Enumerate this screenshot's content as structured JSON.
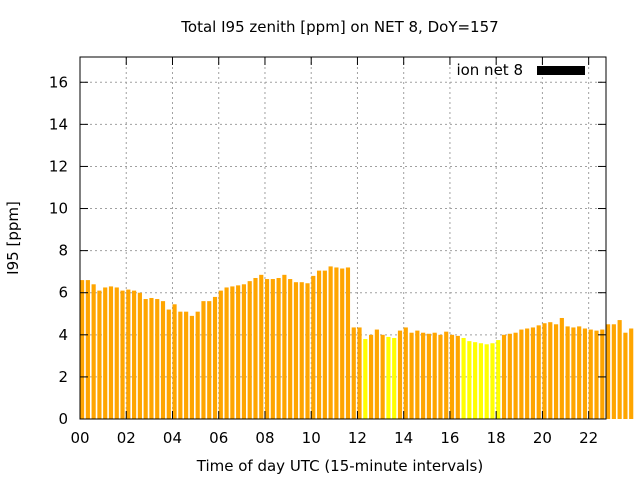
{
  "chart_data": {
    "type": "bar",
    "title": "Total I95 zenith [ppm] on NET 8, DoY=157",
    "xlabel": "Time of day UTC (15-minute intervals)",
    "ylabel": "I95 [ppm]",
    "xlim": [
      0,
      22.75
    ],
    "ylim": [
      0,
      17.2
    ],
    "grid": true,
    "legend_position": "top-right",
    "x_ticks": [
      {
        "value": 0,
        "label": "00"
      },
      {
        "value": 2,
        "label": "02"
      },
      {
        "value": 4,
        "label": "04"
      },
      {
        "value": 6,
        "label": "06"
      },
      {
        "value": 8,
        "label": "08"
      },
      {
        "value": 10,
        "label": "10"
      },
      {
        "value": 12,
        "label": "12"
      },
      {
        "value": 14,
        "label": "14"
      },
      {
        "value": 16,
        "label": "16"
      },
      {
        "value": 18,
        "label": "18"
      },
      {
        "value": 20,
        "label": "20"
      },
      {
        "value": 22,
        "label": "22"
      }
    ],
    "y_ticks": [
      {
        "value": 0,
        "label": "0"
      },
      {
        "value": 2,
        "label": "2"
      },
      {
        "value": 4,
        "label": "4"
      },
      {
        "value": 6,
        "label": "6"
      },
      {
        "value": 8,
        "label": "8"
      },
      {
        "value": 10,
        "label": "10"
      },
      {
        "value": 12,
        "label": "12"
      },
      {
        "value": 14,
        "label": "14"
      },
      {
        "value": 16,
        "label": "16"
      }
    ],
    "series": [
      {
        "name": "ion net 8",
        "legend_color": "#000000",
        "interval_hours": 0.25,
        "bar_colors": {
          "orange": "#ffa500",
          "yellow": "#ffff00"
        },
        "values": [
          6.6,
          6.6,
          6.4,
          6.1,
          6.25,
          6.3,
          6.25,
          6.1,
          6.15,
          6.1,
          6.0,
          5.7,
          5.75,
          5.7,
          5.6,
          5.2,
          5.45,
          5.1,
          5.1,
          4.9,
          5.1,
          5.6,
          5.6,
          5.8,
          6.1,
          6.25,
          6.3,
          6.35,
          6.4,
          6.55,
          6.7,
          6.85,
          6.65,
          6.65,
          6.7,
          6.85,
          6.65,
          6.5,
          6.5,
          6.45,
          6.8,
          7.05,
          7.05,
          7.25,
          7.2,
          7.15,
          7.2,
          4.35,
          4.35,
          3.8,
          4.0,
          4.25,
          4.0,
          3.9,
          3.85,
          4.2,
          4.35,
          4.1,
          4.2,
          4.1,
          4.05,
          4.1,
          4.0,
          4.15,
          4.0,
          3.95,
          3.85,
          3.7,
          3.65,
          3.6,
          3.55,
          3.6,
          3.75,
          4.0,
          4.05,
          4.1,
          4.25,
          4.3,
          4.35,
          4.45,
          4.55,
          4.6,
          4.5,
          4.8,
          4.4,
          4.35,
          4.4,
          4.3,
          4.25,
          4.2,
          4.25,
          4.5,
          4.5,
          4.7,
          4.1,
          4.3
        ],
        "colors": [
          "orange",
          "orange",
          "orange",
          "orange",
          "orange",
          "orange",
          "orange",
          "orange",
          "orange",
          "orange",
          "orange",
          "orange",
          "orange",
          "orange",
          "orange",
          "orange",
          "orange",
          "orange",
          "orange",
          "orange",
          "orange",
          "orange",
          "orange",
          "orange",
          "orange",
          "orange",
          "orange",
          "orange",
          "orange",
          "orange",
          "orange",
          "orange",
          "orange",
          "orange",
          "orange",
          "orange",
          "orange",
          "orange",
          "orange",
          "orange",
          "orange",
          "orange",
          "orange",
          "orange",
          "orange",
          "orange",
          "orange",
          "orange",
          "orange",
          "yellow",
          "orange",
          "orange",
          "orange",
          "yellow",
          "yellow",
          "orange",
          "orange",
          "orange",
          "orange",
          "orange",
          "orange",
          "orange",
          "orange",
          "orange",
          "orange",
          "orange",
          "yellow",
          "yellow",
          "yellow",
          "yellow",
          "yellow",
          "yellow",
          "yellow",
          "orange",
          "orange",
          "orange",
          "orange",
          "orange",
          "orange",
          "orange",
          "orange",
          "orange",
          "orange",
          "orange",
          "orange",
          "orange",
          "orange",
          "orange",
          "orange",
          "orange",
          "orange",
          "orange",
          "orange",
          "orange",
          "orange",
          "orange"
        ]
      }
    ]
  }
}
